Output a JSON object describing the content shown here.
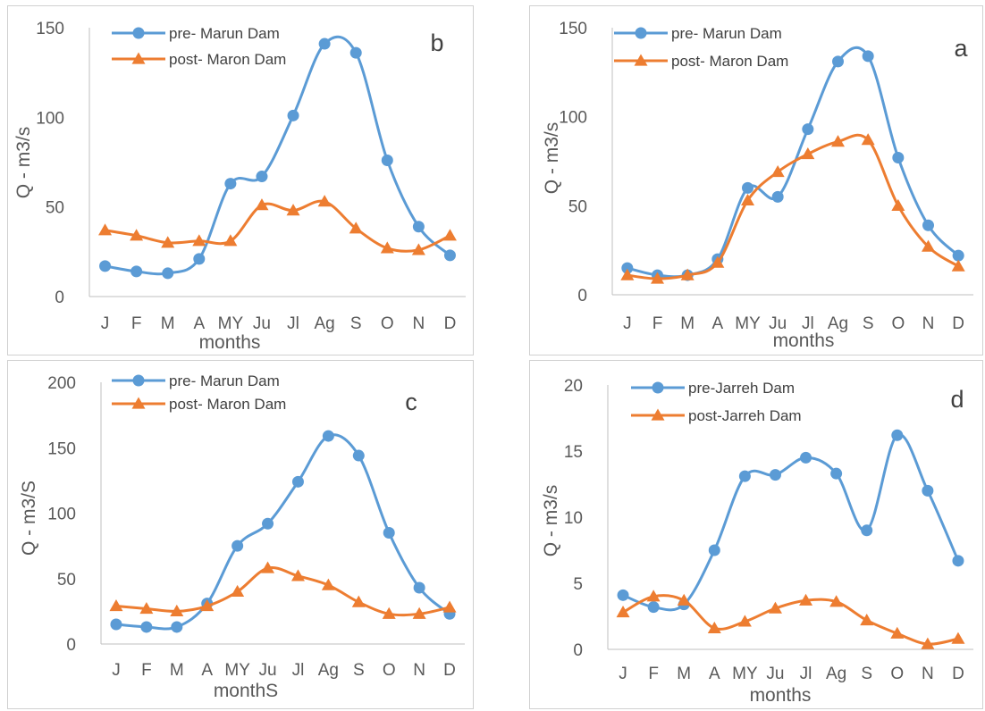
{
  "colors": {
    "pre": "#5b9bd5",
    "post": "#ed7d31",
    "axis": "#bfbfbf",
    "text": "#595959"
  },
  "chart_data": [
    {
      "type": "line",
      "panel_label": "b",
      "categories": [
        "J",
        "F",
        "M",
        "A",
        "MY",
        "Ju",
        "Jl",
        "Ag",
        "S",
        "O",
        "N",
        "D"
      ],
      "xlabel": "months",
      "ylabel": "Q - m3/s",
      "ylim": [
        0,
        150
      ],
      "yticks": [
        "0",
        "50",
        "100",
        "150"
      ],
      "series": [
        {
          "name": "pre- Marun Dam",
          "marker": "circle",
          "values": [
            17,
            14,
            13,
            21,
            63,
            67,
            101,
            141,
            136,
            76,
            39,
            23
          ]
        },
        {
          "name": "post- Maron Dam",
          "marker": "triangle",
          "values": [
            37,
            34,
            30,
            31,
            31,
            51,
            48,
            53,
            38,
            27,
            26,
            34
          ]
        }
      ],
      "legend": "top-left",
      "grid": false
    },
    {
      "type": "line",
      "panel_label": "a",
      "categories": [
        "J",
        "F",
        "M",
        "A",
        "MY",
        "Ju",
        "Jl",
        "Ag",
        "S",
        "O",
        "N",
        "D"
      ],
      "xlabel": "months",
      "ylabel": "Q - m3/s",
      "ylim": [
        0,
        150
      ],
      "yticks": [
        "0",
        "50",
        "100",
        "150"
      ],
      "series": [
        {
          "name": "pre- Marun Dam",
          "marker": "circle",
          "values": [
            15,
            11,
            11,
            20,
            60,
            55,
            93,
            131,
            134,
            77,
            39,
            22
          ]
        },
        {
          "name": "post- Maron Dam",
          "marker": "triangle",
          "values": [
            11,
            9,
            11,
            18,
            53,
            69,
            79,
            86,
            87,
            50,
            27,
            16
          ]
        }
      ],
      "legend": "top-left",
      "grid": false
    },
    {
      "type": "line",
      "panel_label": "c",
      "categories": [
        "J",
        "F",
        "M",
        "A",
        "MY",
        "Ju",
        "Jl",
        "Ag",
        "S",
        "O",
        "N",
        "D"
      ],
      "xlabel": "monthS",
      "ylabel": "Q - m3/S",
      "ylim": [
        0,
        200
      ],
      "yticks": [
        "0",
        "50",
        "100",
        "150",
        "200"
      ],
      "series": [
        {
          "name": "pre- Marun Dam",
          "marker": "circle",
          "values": [
            15,
            13,
            13,
            31,
            75,
            92,
            124,
            159,
            144,
            85,
            43,
            23
          ]
        },
        {
          "name": "post- Maron Dam",
          "marker": "triangle",
          "values": [
            29,
            27,
            25,
            29,
            40,
            58,
            52,
            45,
            32,
            23,
            23,
            28
          ]
        }
      ],
      "legend": "top-left",
      "grid": false
    },
    {
      "type": "line",
      "panel_label": "d",
      "categories": [
        "J",
        "F",
        "M",
        "A",
        "MY",
        "Ju",
        "Jl",
        "Ag",
        "S",
        "O",
        "N",
        "D"
      ],
      "xlabel": "months",
      "ylabel": "Q - m3/s",
      "ylim": [
        0,
        20
      ],
      "yticks": [
        "0",
        "5",
        "10",
        "15",
        "20"
      ],
      "series": [
        {
          "name": "pre-Jarreh Dam",
          "marker": "circle",
          "values": [
            4.1,
            3.2,
            3.4,
            7.5,
            13.1,
            13.2,
            14.5,
            13.3,
            9.0,
            16.2,
            12.0,
            6.7
          ]
        },
        {
          "name": "post-Jarreh Dam",
          "marker": "triangle",
          "values": [
            2.8,
            4.0,
            3.7,
            1.6,
            2.1,
            3.1,
            3.7,
            3.6,
            2.2,
            1.2,
            0.4,
            0.8
          ]
        }
      ],
      "legend": "top-left",
      "grid": false
    }
  ]
}
